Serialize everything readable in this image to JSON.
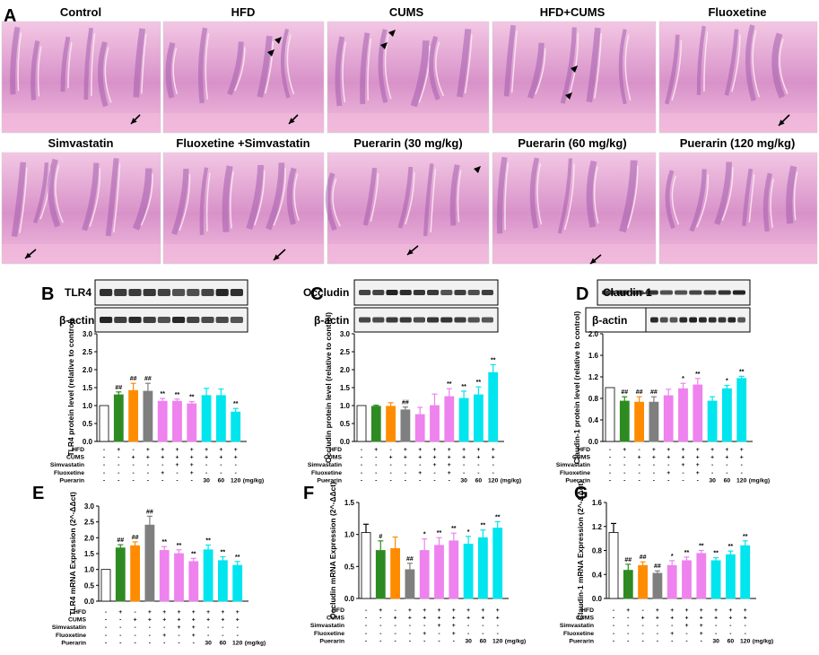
{
  "panel_letters": [
    "A",
    "B",
    "C",
    "D",
    "E",
    "F",
    "G"
  ],
  "histology": {
    "row1": [
      "Control",
      "HFD",
      "CUMS",
      "HFD+CUMS",
      "Fluoxetine"
    ],
    "row2": [
      "Simvastatin",
      "Fluoxetine +Simvastatin",
      "Puerarin (30 mg/kg)",
      "Puerarin (60 mg/kg)",
      "Puerarin (120 mg/kg)"
    ],
    "tissue_color": "#e9a8cf",
    "villi_color": "#b06cb7"
  },
  "blots": {
    "B": {
      "target": "TLR4",
      "loading": "β-actin"
    },
    "C": {
      "target": "Occludin",
      "loading": "β-actin"
    },
    "D": {
      "target": "Claudin-1",
      "loading": "β-actin"
    }
  },
  "table": {
    "row_labels": [
      "HFD",
      "CUMS",
      "Simvastatin",
      "Fluoxetine",
      "Puerarin"
    ],
    "rows": [
      [
        "-",
        "+",
        "-",
        "+",
        "+",
        "+",
        "+",
        "+",
        "+",
        "+"
      ],
      [
        "-",
        "-",
        "+",
        "+",
        "+",
        "+",
        "+",
        "+",
        "+",
        "+"
      ],
      [
        "-",
        "-",
        "-",
        "-",
        "-",
        "+",
        "+",
        "-",
        "-",
        "-"
      ],
      [
        "-",
        "-",
        "-",
        "-",
        "+",
        "-",
        "+",
        "-",
        "-",
        "-"
      ],
      [
        "-",
        "-",
        "-",
        "-",
        "-",
        "-",
        "-",
        "30",
        "60",
        "120"
      ]
    ],
    "unit": "(mg/kg)"
  },
  "colors": [
    "#ffffff",
    "#2e8b22",
    "#ff8c00",
    "#7f7f7f",
    "#ee82ee",
    "#ee82ee",
    "#ee82ee",
    "#00e5ee",
    "#00e5ee",
    "#00e5ee"
  ],
  "chart_data": [
    {
      "panel": "B",
      "type": "bar",
      "ylabel": "TLR4 protein level (relative to control)",
      "ylim": [
        0,
        3.0
      ],
      "ticks": [
        "0.0",
        "0.5",
        "1.0",
        "1.5",
        "2.0",
        "2.5",
        "3.0"
      ],
      "values": [
        1.0,
        1.3,
        1.42,
        1.4,
        1.12,
        1.12,
        1.05,
        1.28,
        1.28,
        0.82
      ],
      "errors": [
        0,
        0.08,
        0.2,
        0.22,
        0.08,
        0.06,
        0.06,
        0.2,
        0.18,
        0.1
      ],
      "marks": [
        "",
        "##",
        "##",
        "##",
        "**",
        "**",
        "**",
        "",
        "",
        "**"
      ]
    },
    {
      "panel": "C",
      "type": "bar",
      "ylabel": "Occludin protein level (relative to control)",
      "ylim": [
        0,
        3.0
      ],
      "ticks": [
        "0.0",
        "0.5",
        "1.0",
        "1.5",
        "2.0",
        "2.5",
        "3.0"
      ],
      "values": [
        1.0,
        0.98,
        0.98,
        0.88,
        0.75,
        1.0,
        1.25,
        1.2,
        1.3,
        1.92
      ],
      "errors": [
        0,
        0.03,
        0.1,
        0.08,
        0.2,
        0.32,
        0.22,
        0.2,
        0.22,
        0.22
      ],
      "marks": [
        "",
        "",
        "",
        "##",
        "",
        "",
        "**",
        "**",
        "**",
        "**"
      ]
    },
    {
      "panel": "D",
      "type": "bar",
      "ylabel": "Claudin-1 protein level (relative to control)",
      "ylim": [
        0,
        2.0
      ],
      "ticks": [
        "0.0",
        "0.4",
        "0.8",
        "1.2",
        "1.6",
        "2.0"
      ],
      "values": [
        1.0,
        0.75,
        0.73,
        0.73,
        0.85,
        0.98,
        1.05,
        0.75,
        0.98,
        1.17
      ],
      "errors": [
        0,
        0.08,
        0.1,
        0.1,
        0.12,
        0.1,
        0.12,
        0.08,
        0.06,
        0.04
      ],
      "marks": [
        "",
        "##",
        "##",
        "##",
        "",
        "*",
        "**",
        "",
        "*",
        "**"
      ]
    },
    {
      "panel": "E",
      "type": "bar",
      "ylabel": "TLR4 mRNA Expression (2^-ΔΔct)",
      "ylim": [
        0,
        3.0
      ],
      "ticks": [
        "0.0",
        "0.5",
        "1.0",
        "1.5",
        "2.0",
        "2.5",
        "3.0"
      ],
      "values": [
        1.0,
        1.68,
        1.75,
        2.4,
        1.6,
        1.5,
        1.25,
        1.62,
        1.28,
        1.13
      ],
      "errors": [
        0,
        0.1,
        0.12,
        0.28,
        0.12,
        0.12,
        0.1,
        0.15,
        0.12,
        0.12
      ],
      "marks": [
        "",
        "##",
        "##",
        "##",
        "**",
        "**",
        "**",
        "**",
        "**",
        "**"
      ]
    },
    {
      "panel": "F",
      "type": "bar",
      "ylabel": "Occludin mRNA Expression (2^-ΔΔct)",
      "ylim": [
        0,
        1.5
      ],
      "ticks": [
        "0.0",
        "0.5",
        "1.0",
        "1.5"
      ],
      "values": [
        1.03,
        0.75,
        0.78,
        0.45,
        0.75,
        0.83,
        0.9,
        0.85,
        0.95,
        1.1
      ],
      "errors": [
        0.13,
        0.15,
        0.18,
        0.1,
        0.18,
        0.12,
        0.12,
        0.12,
        0.12,
        0.1
      ],
      "marks": [
        "",
        "#",
        "",
        "##",
        "*",
        "**",
        "**",
        "*",
        "**",
        "**"
      ]
    },
    {
      "panel": "G",
      "type": "bar",
      "ylabel": "Claudin-1 mRNA Expression (2^-ΔΔct)",
      "ylim": [
        0,
        1.6
      ],
      "ticks": [
        "0.0",
        "0.4",
        "0.8",
        "1.2",
        "1.6"
      ],
      "values": [
        1.1,
        0.47,
        0.55,
        0.42,
        0.55,
        0.63,
        0.75,
        0.63,
        0.73,
        0.88
      ],
      "errors": [
        0.15,
        0.1,
        0.06,
        0.04,
        0.08,
        0.06,
        0.05,
        0.05,
        0.06,
        0.08
      ],
      "marks": [
        "",
        "##",
        "##",
        "##",
        "*",
        "**",
        "**",
        "**",
        "**",
        "**"
      ]
    }
  ]
}
